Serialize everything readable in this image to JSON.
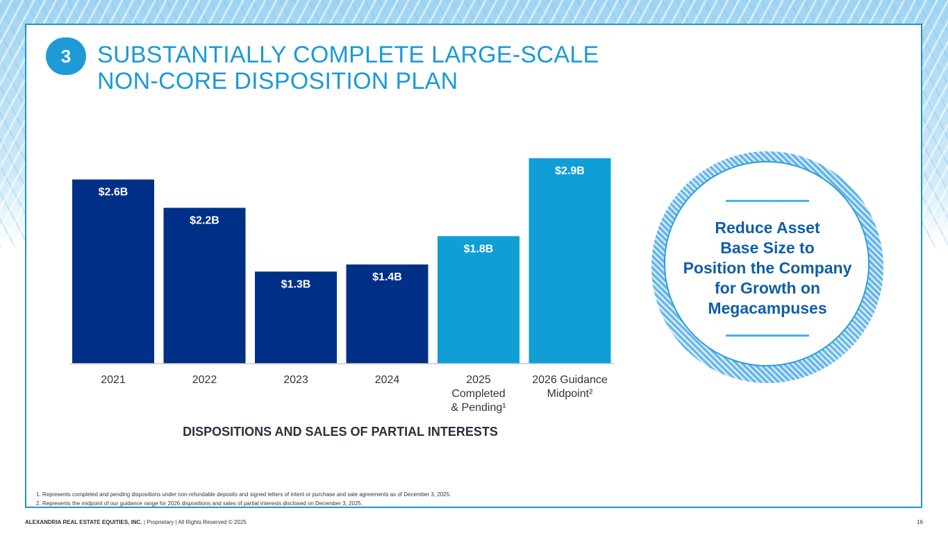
{
  "slide": {
    "number": "3",
    "title_line1": "SUBSTANTIALLY COMPLETE LARGE-SCALE",
    "title_line2": "NON-CORE DISPOSITION PLAN",
    "caption": "DISPOSITIONS AND SALES OF PARTIAL INTERESTS"
  },
  "chart_data": {
    "type": "bar",
    "title": "DISPOSITIONS AND SALES OF PARTIAL INTERESTS",
    "categories": [
      [
        "2021"
      ],
      [
        "2022"
      ],
      [
        "2023"
      ],
      [
        "2024"
      ],
      [
        "2025",
        "Completed",
        "& Pending¹"
      ],
      [
        "2026 Guidance",
        "Midpoint²"
      ]
    ],
    "values": [
      2.6,
      2.2,
      1.3,
      1.4,
      1.8,
      2.9
    ],
    "labels": [
      "$2.6B",
      "$2.2B",
      "$1.3B",
      "$1.4B",
      "$1.8B",
      "$2.9B"
    ],
    "unit": "$B",
    "ylim": [
      0,
      2.9
    ],
    "xlabel": "",
    "ylabel": "",
    "grid": false,
    "colors": [
      "#002f87",
      "#002f87",
      "#002f87",
      "#002f87",
      "#0f9fd6",
      "#0f9fd6"
    ]
  },
  "callout": {
    "lines": [
      "Reduce Asset",
      "Base Size to",
      "Position the Company",
      "for Growth on",
      "Megacampuses"
    ]
  },
  "footnotes": [
    "1.   Represents completed and pending dispositions under non-refundable deposits and signed letters of intent or purchase and sale agreements as of December 3, 2025.",
    "2.   Represents the midpoint of our guidance range for 2026 dispositions and sales of partial interests disclosed on December 3, 2025."
  ],
  "footer": {
    "company": "ALEXANDRIA REAL ESTATE EQUITIES, INC.",
    "rest": " | Proprietary | All Rights Reserved © 2025",
    "page": "16"
  }
}
